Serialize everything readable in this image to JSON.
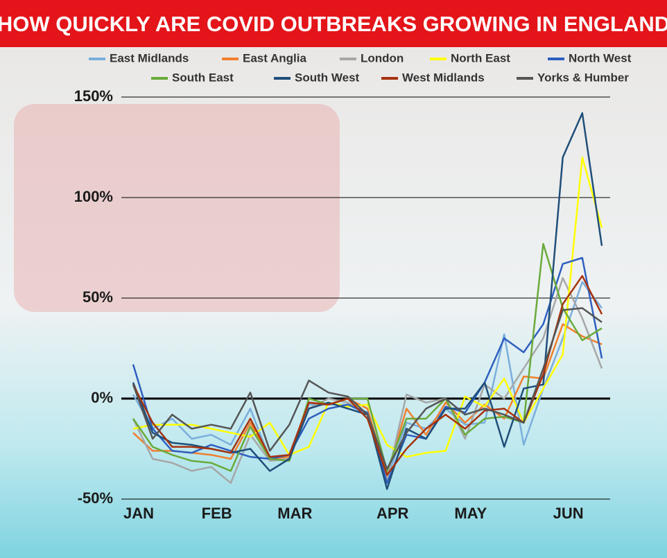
{
  "chart_data": {
    "type": "line",
    "title": "HOW QUICKLY ARE COVID OUTBREAKS GROWING IN ENGLAND",
    "categories": [
      "JAN",
      null,
      null,
      null,
      "FEB",
      null,
      null,
      null,
      "MAR",
      null,
      null,
      null,
      null,
      "APR",
      null,
      null,
      null,
      "MAY",
      null,
      null,
      null,
      null,
      "JUN",
      null,
      null
    ],
    "ylim": [
      -50,
      150
    ],
    "yticks": [
      {
        "value": -50,
        "label": "-50%"
      },
      {
        "value": 0,
        "label": "0%"
      },
      {
        "value": 50,
        "label": "50%"
      },
      {
        "value": 100,
        "label": "100%"
      },
      {
        "value": 150,
        "label": "150%"
      }
    ],
    "grid": true,
    "legend": "top",
    "series": [
      {
        "name": "East Midlands",
        "color": "#7aaedc",
        "values": [
          2,
          -15,
          -10,
          -20,
          -18,
          -23,
          -5,
          -30,
          -28,
          -3,
          -3,
          -3,
          -8,
          -40,
          -12,
          -15,
          -5,
          -13,
          -12,
          32,
          -23,
          5,
          30,
          58,
          45
        ]
      },
      {
        "name": "East Anglia",
        "color": "#f07f2e",
        "values": [
          -17,
          -26,
          -26,
          -27,
          -28,
          -30,
          -12,
          -30,
          -29,
          -2,
          -3,
          0,
          -5,
          -38,
          -5,
          -18,
          -2,
          -12,
          -3,
          -10,
          11,
          10,
          37,
          31,
          27
        ]
      },
      {
        "name": "London",
        "color": "#a6a6a6",
        "values": [
          -10,
          -30,
          -32,
          -36,
          -34,
          -42,
          -18,
          -31,
          -30,
          -5,
          0,
          -2,
          -8,
          -40,
          2,
          -2,
          0,
          -20,
          7,
          0,
          15,
          30,
          60,
          40,
          15
        ]
      },
      {
        "name": "North East",
        "color": "#ffff00",
        "values": [
          -15,
          -13,
          -13,
          -13,
          -15,
          -17,
          -19,
          -12,
          -28,
          -24,
          -2,
          -4,
          -3,
          -23,
          -29,
          -27,
          -26,
          1,
          -4,
          10,
          -12,
          5,
          22,
          120,
          85
        ]
      },
      {
        "name": "North West",
        "color": "#2e5fbf",
        "values": [
          17,
          -15,
          -26,
          -27,
          -23,
          -26,
          -29,
          -30,
          -28,
          -10,
          -5,
          -3,
          -7,
          -42,
          -18,
          -20,
          -4,
          -7,
          8,
          30,
          23,
          37,
          67,
          70,
          20
        ]
      },
      {
        "name": "South East",
        "color": "#6aaa3a",
        "values": [
          -10,
          -24,
          -28,
          -31,
          -32,
          -36,
          -14,
          -30,
          -31,
          0,
          -3,
          0,
          0,
          -36,
          -10,
          -10,
          0,
          -18,
          -10,
          -9,
          -12,
          77,
          45,
          29,
          35
        ]
      },
      {
        "name": "South West",
        "color": "#1f4e79",
        "values": [
          8,
          -17,
          -22,
          -23,
          -25,
          -27,
          -25,
          -36,
          -30,
          -5,
          -2,
          -5,
          -8,
          -45,
          -15,
          -20,
          -5,
          -5,
          8,
          -24,
          5,
          7,
          120,
          142,
          76
        ]
      },
      {
        "name": "West Midlands",
        "color": "#a6320e",
        "values": [
          7,
          -12,
          -24,
          -24,
          -25,
          -27,
          -10,
          -29,
          -28,
          -2,
          -3,
          0,
          -10,
          -38,
          -25,
          -15,
          -8,
          -15,
          -6,
          -5,
          -12,
          12,
          47,
          61,
          42
        ]
      },
      {
        "name": "Yorks & Humber",
        "color": "#555555",
        "values": [
          7,
          -20,
          -8,
          -15,
          -13,
          -15,
          3,
          -26,
          -13,
          9,
          3,
          1,
          -8,
          -35,
          -17,
          -5,
          0,
          -8,
          -5,
          -8,
          -12,
          15,
          44,
          45,
          38
        ]
      }
    ]
  }
}
